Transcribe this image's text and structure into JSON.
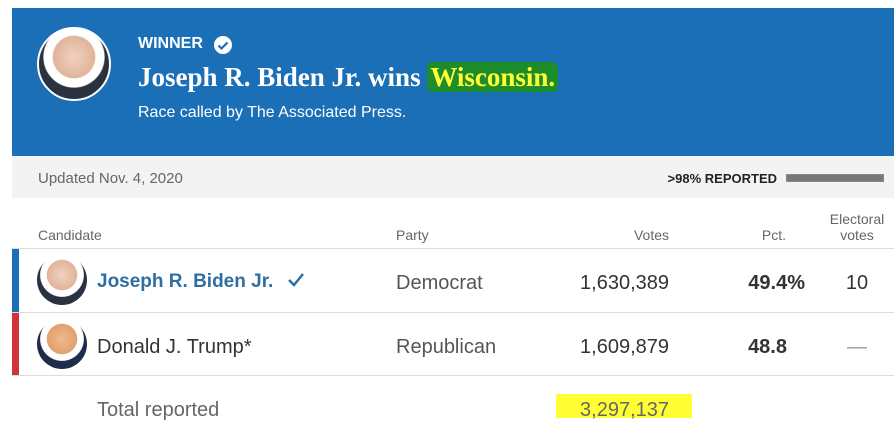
{
  "header": {
    "label": "WINNER",
    "headline": "Joseph R. Biden Jr. wins",
    "state": "Wisconsin.",
    "subtitle": "Race called by The Associated Press."
  },
  "status": {
    "updated": "Updated Nov. 4, 2020",
    "reported": ">98% REPORTED"
  },
  "table": {
    "columns": [
      "Candidate",
      "Party",
      "Votes",
      "Pct.",
      "Electoral votes"
    ],
    "rows": [
      [
        "Joseph R. Biden Jr.",
        "Democrat",
        "1,630,389",
        "49.4%",
        "10"
      ],
      [
        "Donald J. Trump*",
        "Republican",
        "1,609,879",
        "48.8",
        "—"
      ]
    ],
    "total": [
      "Total reported",
      "3,297,137"
    ]
  }
}
